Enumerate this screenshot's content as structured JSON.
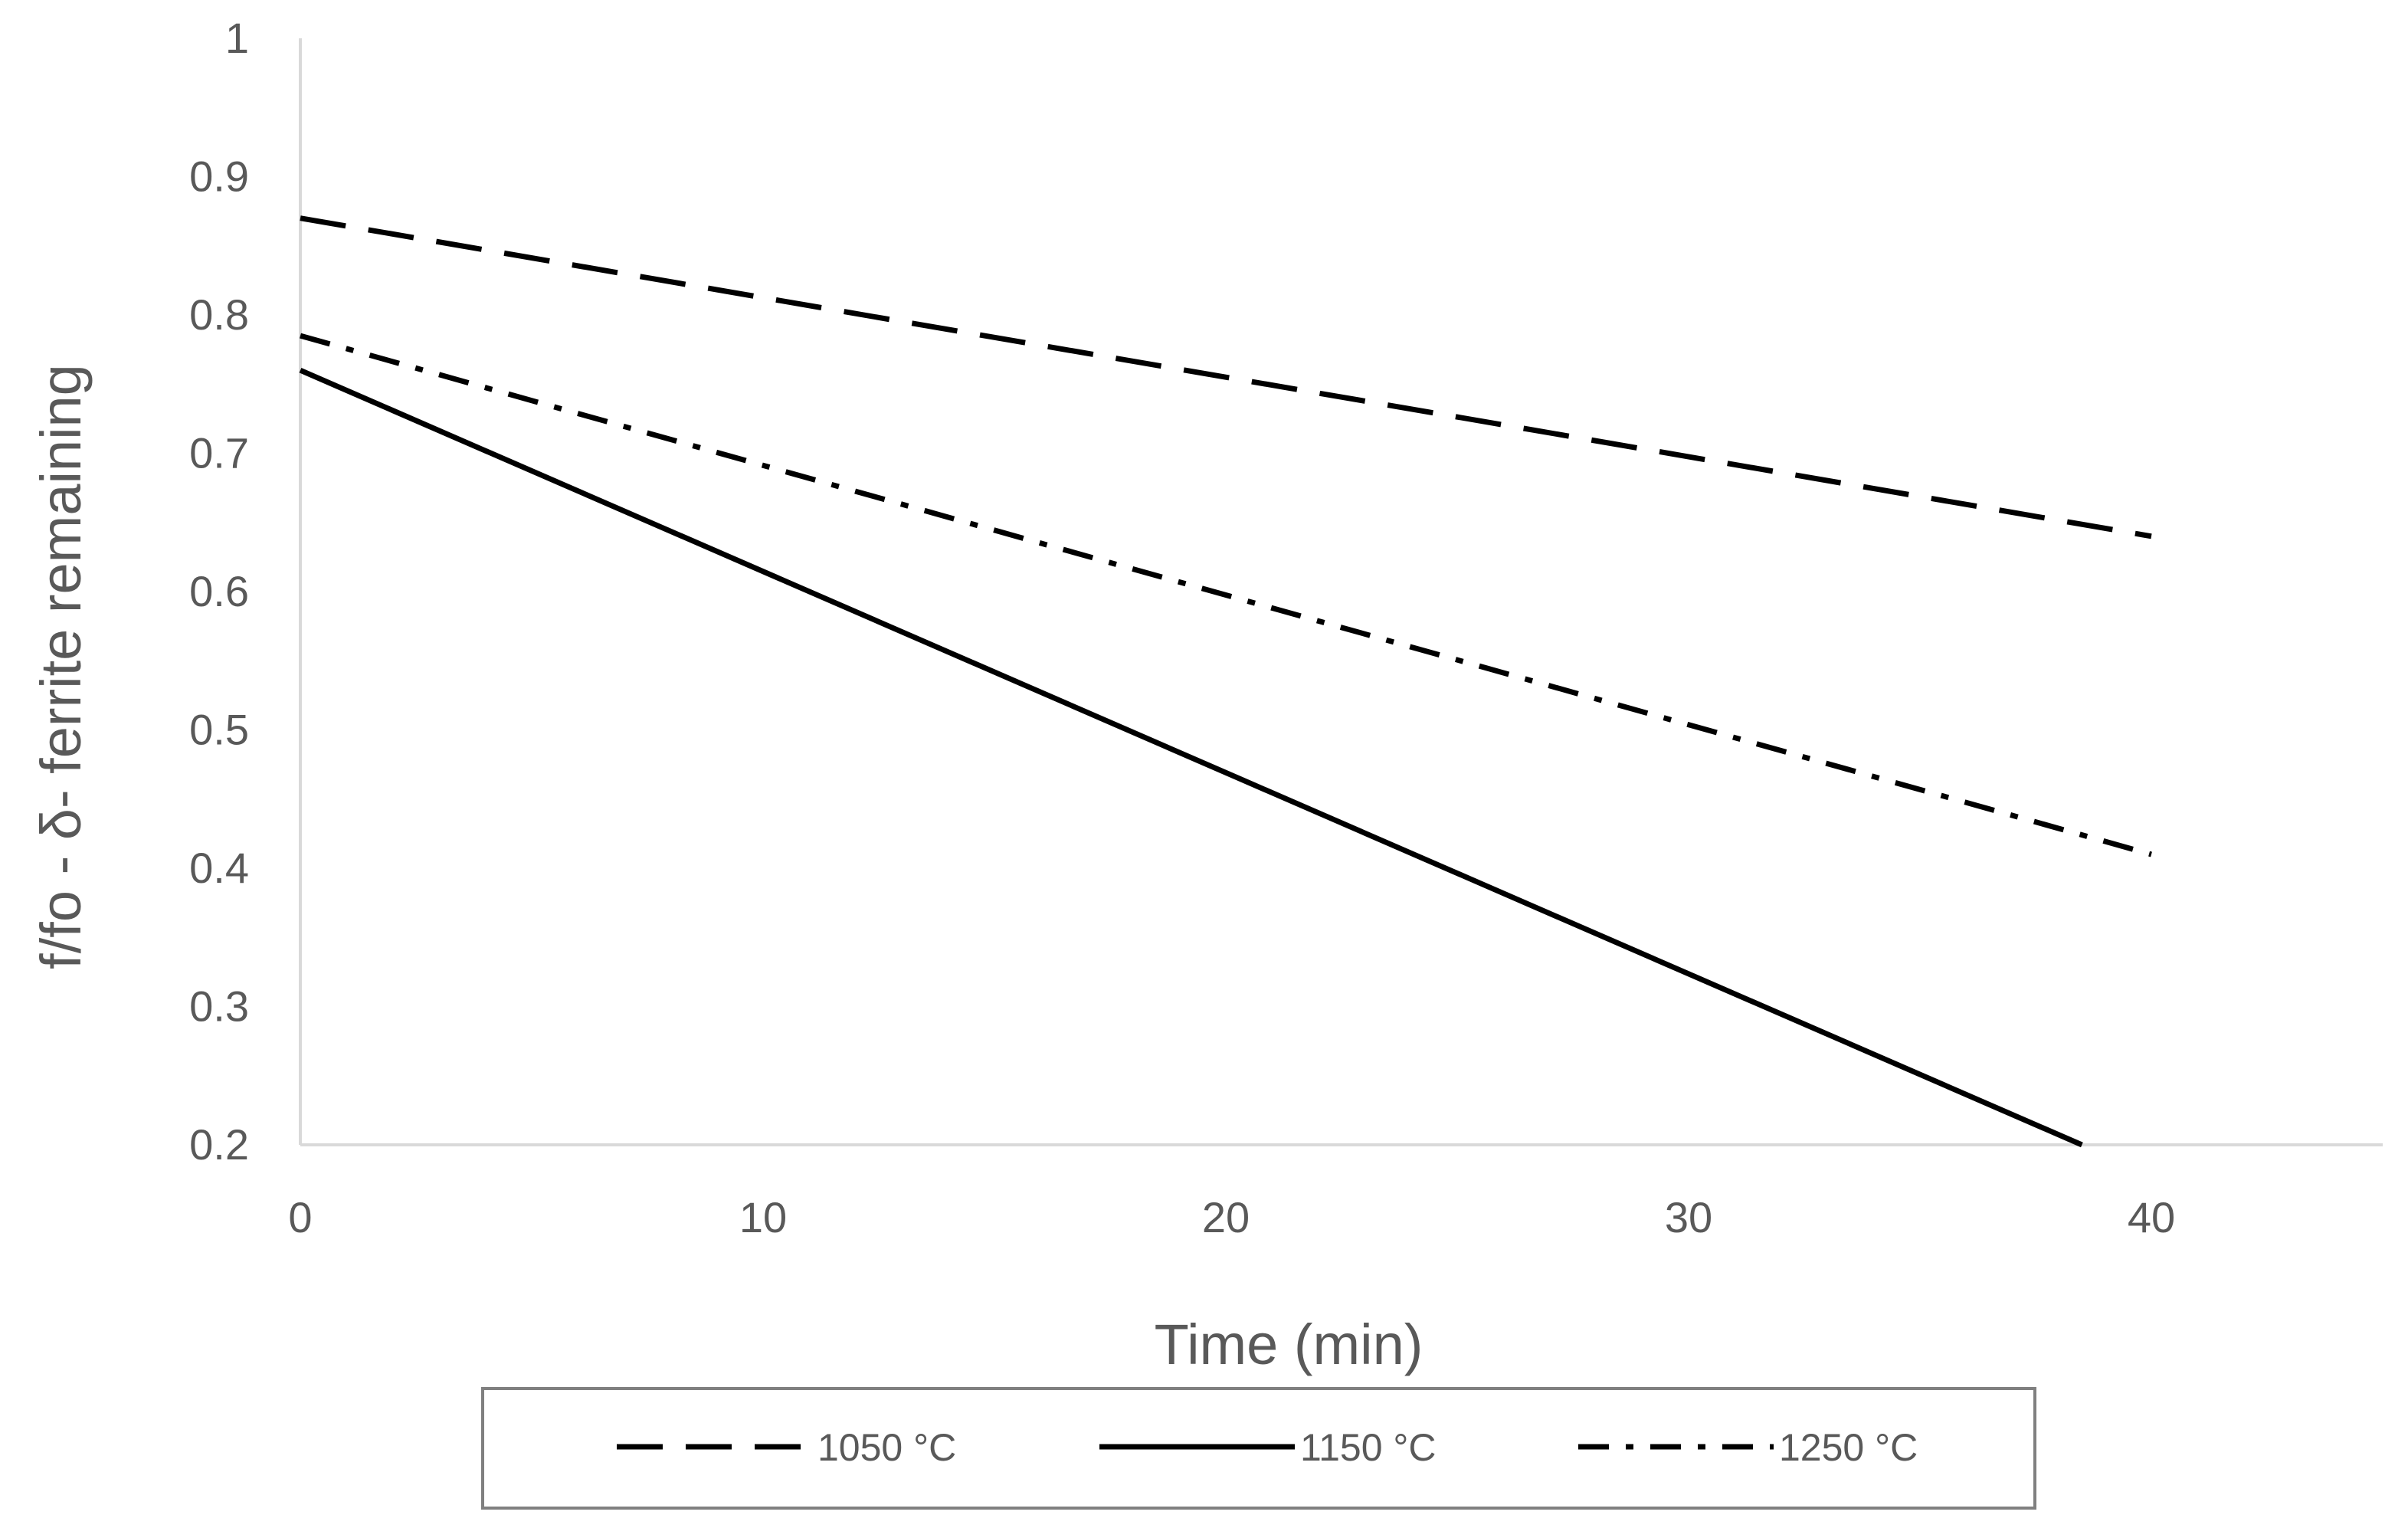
{
  "chart_data": {
    "type": "line",
    "xlabel": "Time (min)",
    "ylabel": "f/fo - δ- ferrite remaining",
    "xlim": [
      0,
      45
    ],
    "ylim": [
      0.2,
      1
    ],
    "x_ticks": [
      0,
      10,
      20,
      30,
      40
    ],
    "y_ticks": [
      0.2,
      0.3,
      0.4,
      0.5,
      0.6,
      0.7,
      0.8,
      0.9,
      1
    ],
    "x_tick_labels": [
      "0",
      "10",
      "20",
      "30",
      "40"
    ],
    "y_tick_labels": [
      "0.2",
      "0.3",
      "0.4",
      "0.5",
      "0.6",
      "0.7",
      "0.8",
      "0.9",
      "1"
    ],
    "grid": false,
    "legend_position": "bottom",
    "series": [
      {
        "name": "1050 °C",
        "style": "dashed",
        "color": "#000000",
        "x": [
          0,
          40
        ],
        "y": [
          0.87,
          0.64
        ]
      },
      {
        "name": "1150 °C",
        "style": "solid",
        "color": "#000000",
        "x": [
          0,
          38.5
        ],
        "y": [
          0.76,
          0.2
        ]
      },
      {
        "name": "1250 °C",
        "style": "dash-dot",
        "color": "#000000",
        "x": [
          0,
          40
        ],
        "y": [
          0.785,
          0.41
        ]
      }
    ]
  }
}
